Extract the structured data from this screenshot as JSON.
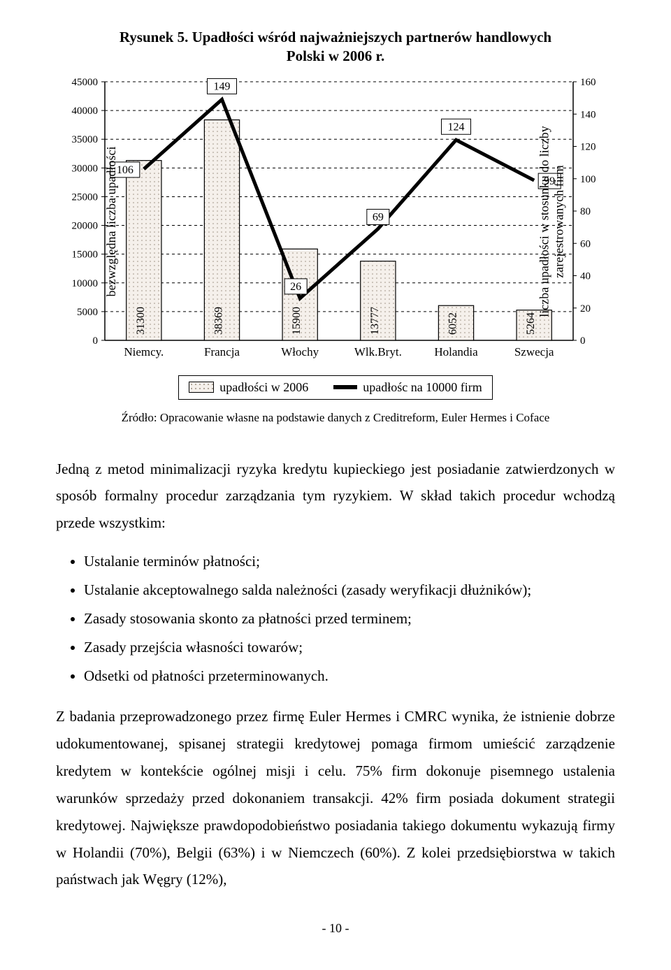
{
  "chart": {
    "title_line1": "Rysunek 5. Upadłości wśród najważniejszych partnerów handlowych",
    "title_line2": "Polski w 2006 r.",
    "y_left_label": "bezwzględna liczba upadłości",
    "y_right_label_line1": "liczba upadłości w stosunku do liczby",
    "y_right_label_line2": "zarejestrowanych firm",
    "categories": [
      "Niemcy.",
      "Francja",
      "Włochy",
      "Wlk.Bryt.",
      "Holandia",
      "Szwecja"
    ],
    "bar_values": [
      31300,
      38369,
      15900,
      13777,
      6052,
      5264
    ],
    "line_values": [
      106,
      149,
      26,
      69,
      124,
      99
    ],
    "y_left": {
      "min": 0,
      "max": 45000,
      "step": 5000
    },
    "y_right": {
      "min": 0,
      "max": 160,
      "step": 20
    },
    "bar_fill": "#f5f0eb",
    "bar_dot_color": "#9a8f80",
    "bar_stroke": "#000000",
    "line_color": "#000000",
    "grid_color": "#000000",
    "bg_color": "#ffffff",
    "legend": {
      "bar_label": "upadłości w 2006",
      "line_label": "upadłośc na 10000 firm"
    }
  },
  "source_text": "Źródło: Opracowanie własne na podstawie danych z Creditreform, Euler Hermes i Coface",
  "para1": "Jedną z metod minimalizacji ryzyka kredytu kupieckiego jest posiadanie zatwierdzonych w sposób formalny procedur zarządzania tym ryzykiem. W skład takich procedur wchodzą przede wszystkim:",
  "bullets": [
    "Ustalanie terminów płatności;",
    "Ustalanie akceptowalnego salda należności (zasady weryfikacji dłużników);",
    "Zasady stosowania skonto za płatności przed terminem;",
    "Zasady przejścia własności towarów;",
    "Odsetki od płatności przeterminowanych."
  ],
  "para2": "Z badania przeprowadzonego przez firmę Euler Hermes i CMRC wynika, że istnienie dobrze udokumentowanej, spisanej strategii kredytowej pomaga firmom umieścić zarządzenie kredytem w kontekście ogólnej misji i celu. 75% firm dokonuje pisemnego ustalenia warunków sprzedaży przed dokonaniem transakcji. 42% firm posiada dokument strategii kredytowej. Największe prawdopodobieństwo posiadania takiego dokumentu wykazują firmy w Holandii (70%), Belgii (63%) i w Niemczech (60%). Z kolei przedsiębiorstwa w takich państwach jak Węgry (12%),",
  "page_number": "- 10 -"
}
